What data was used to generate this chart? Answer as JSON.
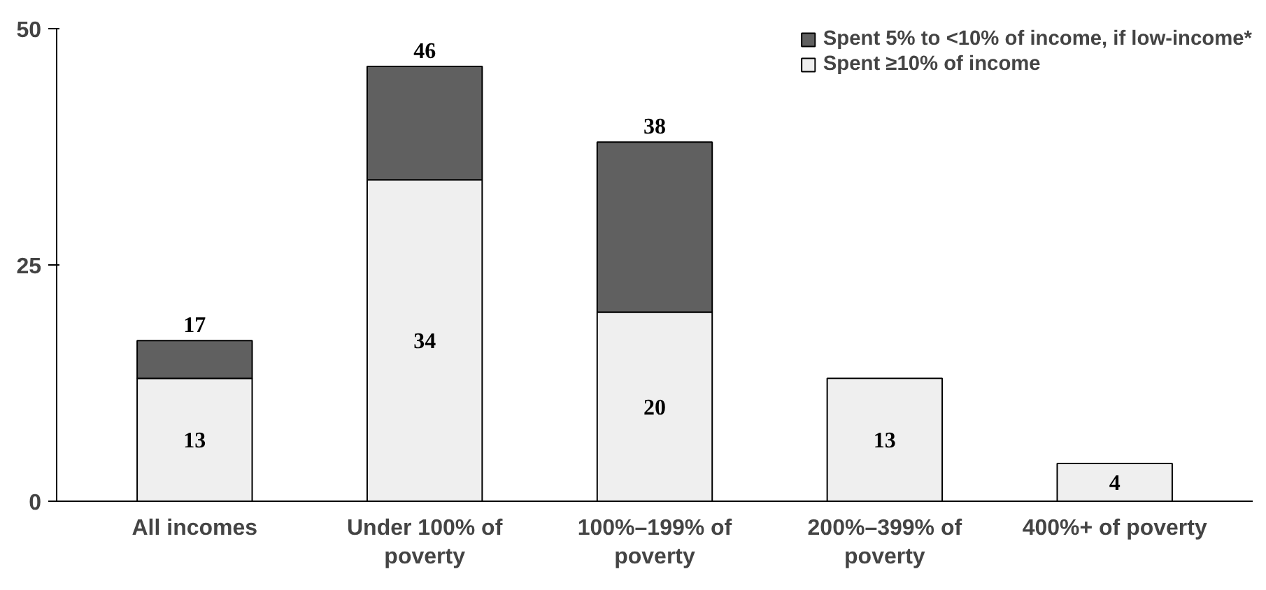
{
  "chart_data": {
    "type": "bar",
    "stacked": true,
    "categories": [
      "All incomes",
      "Under 100% of\npoverty",
      "100%–199% of\npoverty",
      "200%–399% of\npoverty",
      "400%+ of poverty"
    ],
    "series": [
      {
        "name": "Spent ≥10% of income",
        "color": "#efefef",
        "values": [
          13,
          34,
          20,
          13,
          4
        ],
        "value_labels": [
          "13",
          "34",
          "20",
          "13",
          "4"
        ]
      },
      {
        "name": "Spent 5% to <10% of income, if low-income*",
        "color": "#606060",
        "values": [
          4,
          12,
          18,
          null,
          null
        ]
      }
    ],
    "totals": [
      "17",
      "46",
      "38",
      null,
      null
    ],
    "ylim": [
      0,
      50
    ],
    "yticks": [
      0,
      25,
      50
    ],
    "grid": false,
    "legend": "top right"
  }
}
